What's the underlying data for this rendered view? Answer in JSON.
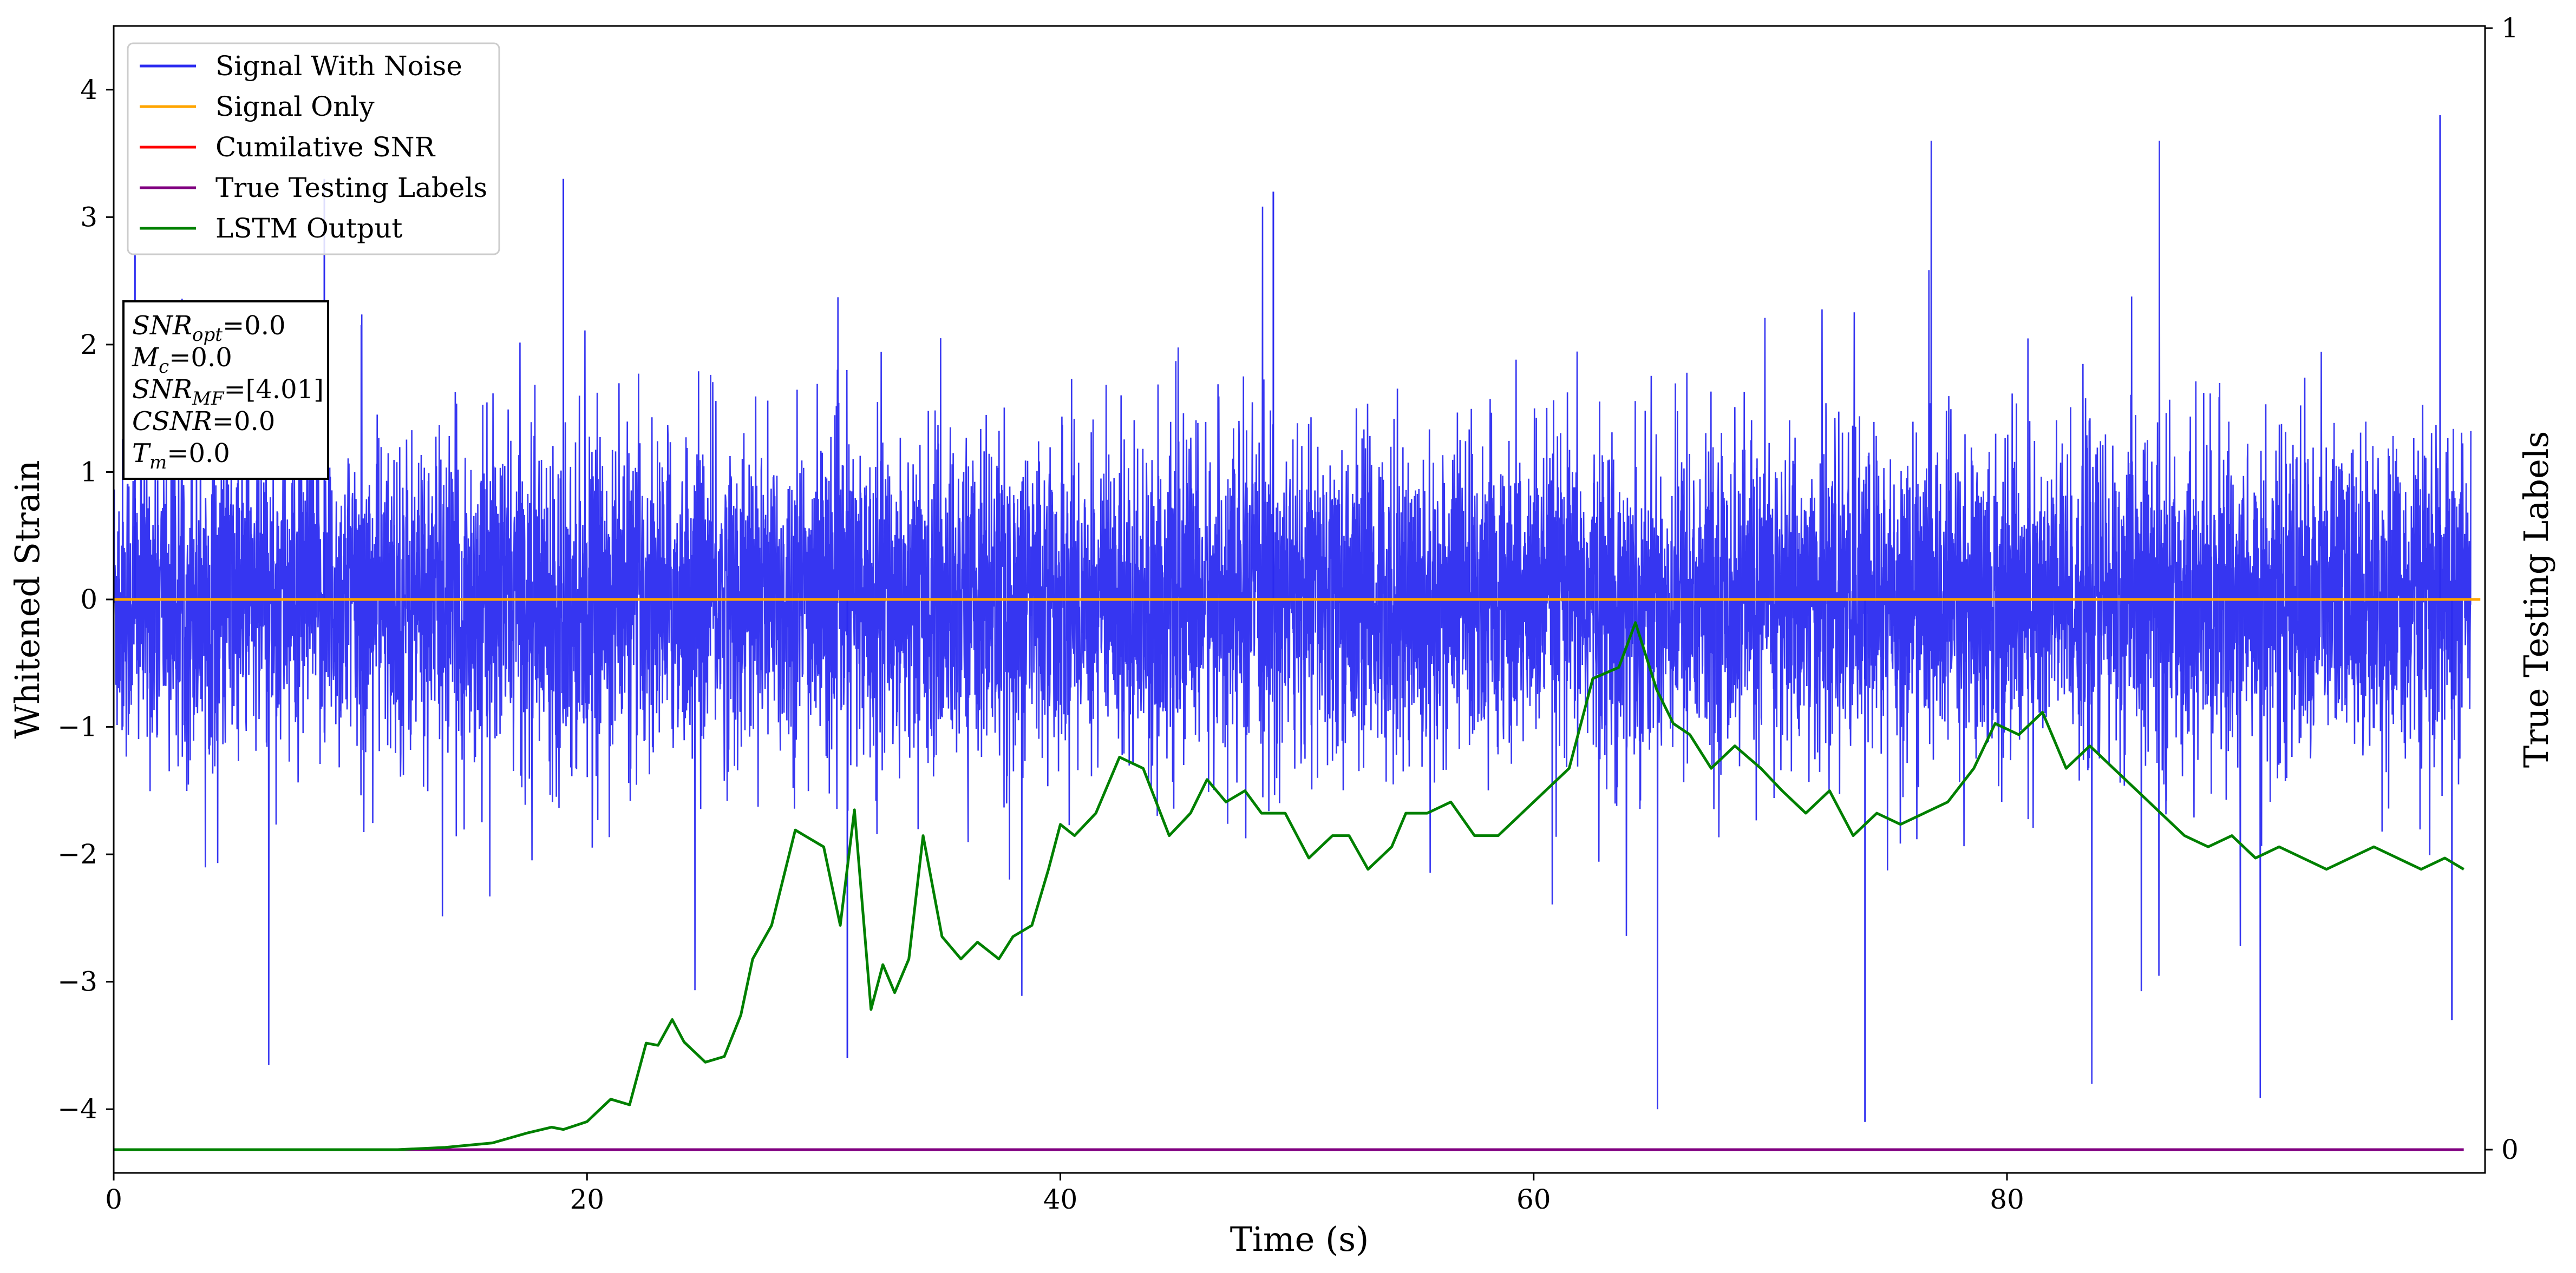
{
  "chart_data": {
    "type": "line",
    "xlabel": "Time (s)",
    "ylabel": "Whitened Strain",
    "y2label": "True Testing Labels",
    "xlim": [
      0,
      100
    ],
    "ylim": [
      -4.5,
      4.5
    ],
    "y2lim": [
      0,
      1
    ],
    "xticks": [
      0,
      20,
      40,
      60,
      80
    ],
    "yticks": [
      -4,
      -3,
      -2,
      -1,
      0,
      1,
      2,
      3,
      4
    ],
    "y2ticks": [
      0,
      1
    ],
    "grid": false,
    "legend_position": "top-left",
    "series": [
      {
        "name": "Signal With Noise",
        "axis": "left",
        "color": "#2b2bf0",
        "description": "dense noise, roughly gaussian, std about 0.6, peaks about +3.8 / -4.1",
        "sample_extremes": [
          {
            "x": 0.9,
            "y": 2.7
          },
          {
            "x": 8.9,
            "y": 3.3
          },
          {
            "x": 19.0,
            "y": 3.3
          },
          {
            "x": 31.0,
            "y": -3.6
          },
          {
            "x": 49.0,
            "y": 3.2
          },
          {
            "x": 74.0,
            "y": -4.1
          },
          {
            "x": 98.3,
            "y": 3.8
          },
          {
            "x": 98.8,
            "y": -3.3
          }
        ]
      },
      {
        "name": "Signal Only",
        "axis": "left",
        "color": "#ffa500",
        "x": [
          0,
          100
        ],
        "y": [
          0,
          0
        ]
      },
      {
        "name": "Cumilative SNR",
        "axis": "left",
        "color": "#ff0000",
        "x": [],
        "y": []
      },
      {
        "name": "True Testing Labels",
        "axis": "right",
        "color": "#800080",
        "x": [
          0,
          99.3
        ],
        "y": [
          0,
          0
        ]
      },
      {
        "name": "LSTM Output",
        "axis": "right",
        "color": "#008000",
        "x": [
          0,
          10,
          12,
          14,
          16,
          17.5,
          18.5,
          19,
          20,
          21,
          21.8,
          22.5,
          23,
          23.6,
          24.1,
          25,
          25.8,
          26.5,
          27,
          27.8,
          28.8,
          29.2,
          30,
          30.7,
          31.3,
          32,
          32.5,
          33,
          33.6,
          34.2,
          35,
          35.8,
          36.5,
          37.4,
          38,
          38.8,
          39.5,
          40,
          40.6,
          41.5,
          42.5,
          43.5,
          44.6,
          45.5,
          46.2,
          47,
          47.8,
          48.5,
          49.5,
          50.5,
          51.5,
          52.2,
          53,
          54,
          54.6,
          55.5,
          56.5,
          57.5,
          58.5,
          59.5,
          60.5,
          61.5,
          62.5,
          63.6,
          64.3,
          65.2,
          65.9,
          66.6,
          67.5,
          68.5,
          69.6,
          70.5,
          71.5,
          72.5,
          73.5,
          74.5,
          75.5,
          76.5,
          77.5,
          78.6,
          79.5,
          80.5,
          81.5,
          82.5,
          83.5,
          84.5,
          85.5,
          86.5,
          87.5,
          88.5,
          89.5,
          90.5,
          91.5,
          92.5,
          93.5,
          94.5,
          95.5,
          96.5,
          97.5,
          98.5,
          99.3
        ],
        "y": [
          0,
          0,
          0,
          0.002,
          0.006,
          0.015,
          0.02,
          0.018,
          0.025,
          0.045,
          0.04,
          0.095,
          0.093,
          0.116,
          0.096,
          0.078,
          0.083,
          0.12,
          0.17,
          0.2,
          0.285,
          0.28,
          0.27,
          0.2,
          0.303,
          0.125,
          0.165,
          0.14,
          0.17,
          0.28,
          0.19,
          0.17,
          0.185,
          0.17,
          0.19,
          0.2,
          0.25,
          0.29,
          0.28,
          0.3,
          0.35,
          0.34,
          0.28,
          0.3,
          0.33,
          0.31,
          0.32,
          0.3,
          0.3,
          0.26,
          0.28,
          0.28,
          0.25,
          0.27,
          0.3,
          0.3,
          0.31,
          0.28,
          0.28,
          0.3,
          0.32,
          0.34,
          0.42,
          0.43,
          0.47,
          0.41,
          0.38,
          0.37,
          0.34,
          0.36,
          0.34,
          0.32,
          0.3,
          0.32,
          0.28,
          0.3,
          0.29,
          0.3,
          0.31,
          0.34,
          0.38,
          0.37,
          0.39,
          0.34,
          0.36,
          0.34,
          0.32,
          0.3,
          0.28,
          0.27,
          0.28,
          0.26,
          0.27,
          0.26,
          0.25,
          0.26,
          0.27,
          0.26,
          0.25,
          0.26,
          0.25
        ]
      }
    ],
    "annotation": {
      "lines": [
        {
          "sym": "SNR",
          "sub": "opt",
          "value": "=0.0"
        },
        {
          "sym": "M",
          "sub": "c",
          "value": "=0.0"
        },
        {
          "sym": "SNR",
          "sub": "MF",
          "value": "=[4.01]"
        },
        {
          "sym": "CSNR",
          "sub": "",
          "value": "=0.0"
        },
        {
          "sym": "T",
          "sub": "m",
          "value": "=0.0"
        }
      ]
    }
  }
}
